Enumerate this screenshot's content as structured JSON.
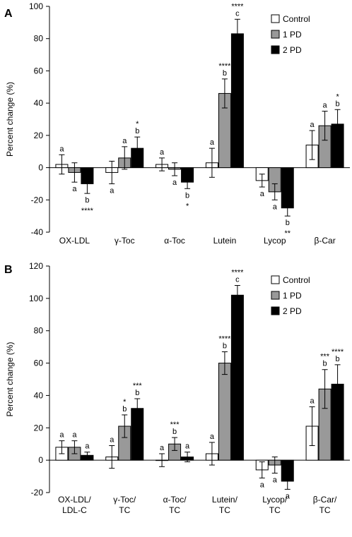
{
  "chart_data": [
    {
      "type": "bar",
      "panel_label": "A",
      "ylabel": "Percent change (%)",
      "ylim": [
        -40,
        100
      ],
      "yticks": [
        "-40",
        "-20",
        "0",
        "20",
        "40",
        "60",
        "80",
        "100"
      ],
      "categories": [
        [
          "OX-LDL"
        ],
        [
          "γ-Toc"
        ],
        [
          "α-Toc"
        ],
        [
          "Lutein"
        ],
        [
          "Lycop"
        ],
        [
          "β-Car"
        ]
      ],
      "legend_position": "top-right",
      "series": [
        {
          "name": "Control",
          "color": "#ffffff",
          "values": [
            2,
            -3,
            2,
            3,
            -8,
            14
          ],
          "errors": [
            6,
            7,
            4,
            9,
            4,
            9
          ],
          "labels": [
            [
              "a"
            ],
            [
              "a"
            ],
            [
              "a"
            ],
            [
              "a"
            ],
            [
              "a"
            ],
            [
              "a"
            ]
          ]
        },
        {
          "name": "1 PD",
          "color": "#999999",
          "values": [
            -3,
            6,
            -1,
            46,
            -15,
            26
          ],
          "errors": [
            6,
            7,
            4,
            9,
            5,
            9
          ],
          "labels": [
            [
              "a"
            ],
            [
              "a"
            ],
            [
              "a"
            ],
            [
              "****",
              "b"
            ],
            [
              "a"
            ],
            [
              "a"
            ]
          ]
        },
        {
          "name": "2 PD",
          "color": "#000000",
          "values": [
            -10,
            12,
            -9,
            83,
            -25,
            27
          ],
          "errors": [
            6,
            7,
            4,
            9,
            5,
            9
          ],
          "labels": [
            [
              "b",
              "****"
            ],
            [
              "*",
              "b"
            ],
            [
              "b",
              "*"
            ],
            [
              "****",
              "c"
            ],
            [
              "b",
              "**"
            ],
            [
              "*",
              "b"
            ]
          ]
        }
      ]
    },
    {
      "type": "bar",
      "panel_label": "B",
      "ylabel": "Percent change (%)",
      "ylim": [
        -20,
        120
      ],
      "yticks": [
        "-20",
        "0",
        "20",
        "40",
        "60",
        "80",
        "100",
        "120"
      ],
      "categories": [
        [
          "OX-LDL/",
          "LDL-C"
        ],
        [
          "γ-Toc/",
          "TC"
        ],
        [
          "α-Toc/",
          "TC"
        ],
        [
          "Lutein/",
          "TC"
        ],
        [
          "Lycop/",
          "TC"
        ],
        [
          "β-Car/",
          "TC"
        ]
      ],
      "legend_position": "top-right",
      "series": [
        {
          "name": "Control",
          "color": "#ffffff",
          "values": [
            8,
            2,
            0,
            4,
            -6,
            21
          ],
          "errors": [
            4,
            7,
            4,
            7,
            5,
            12
          ],
          "labels": [
            [
              "a"
            ],
            [
              "a"
            ],
            [
              "a"
            ],
            [
              "a"
            ],
            [
              "a"
            ],
            [
              "a"
            ]
          ]
        },
        {
          "name": "1 PD",
          "color": "#999999",
          "values": [
            8,
            21,
            10,
            60,
            -3,
            44
          ],
          "errors": [
            4,
            7,
            4,
            7,
            5,
            12
          ],
          "labels": [
            [
              "a"
            ],
            [
              "*",
              "b"
            ],
            [
              "***",
              "b"
            ],
            [
              "****",
              "b"
            ],
            [
              "a"
            ],
            [
              "***",
              "b"
            ]
          ]
        },
        {
          "name": "2 PD",
          "color": "#000000",
          "values": [
            3,
            32,
            2,
            102,
            -13,
            47
          ],
          "errors": [
            2,
            6,
            3,
            6,
            5,
            12
          ],
          "labels": [
            [
              "a"
            ],
            [
              "***",
              "b"
            ],
            [
              "a"
            ],
            [
              "****",
              "c"
            ],
            [
              "a"
            ],
            [
              "****",
              "b"
            ]
          ]
        }
      ]
    }
  ]
}
